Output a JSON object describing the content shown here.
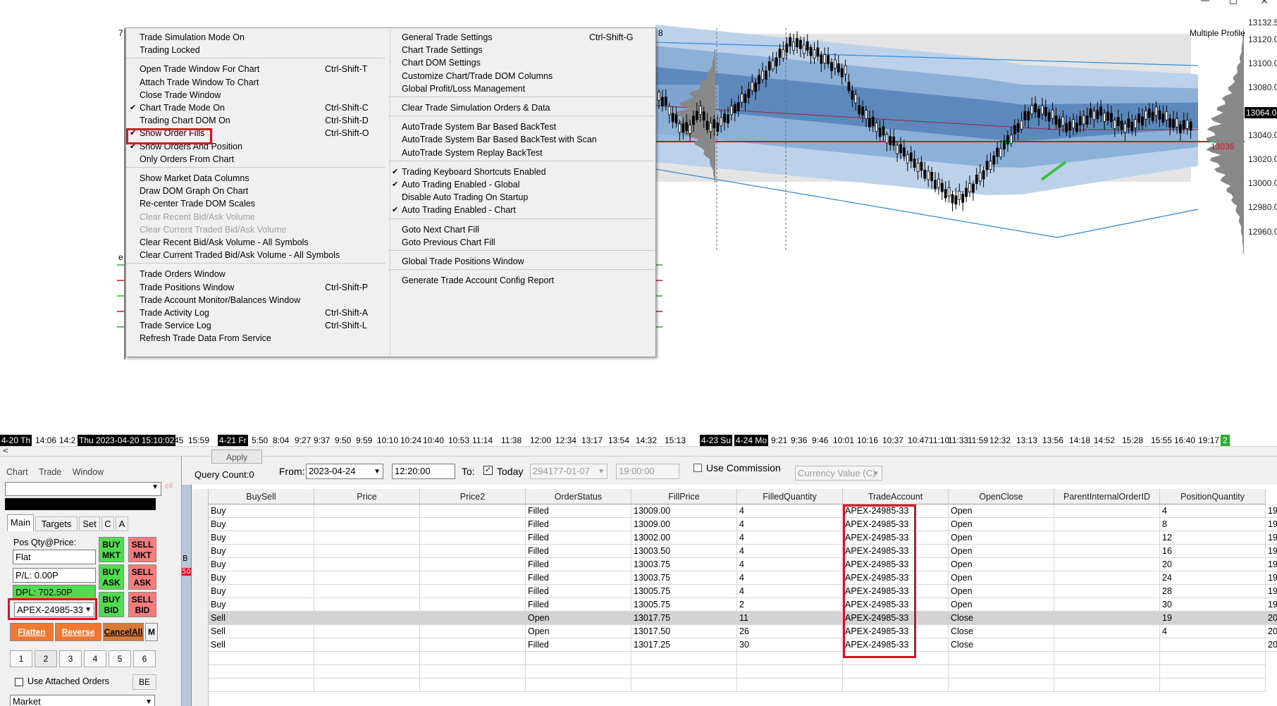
{
  "window": {
    "minimize": "—",
    "maximize": "☐",
    "close": "✕"
  },
  "chart": {
    "title_fragment": "Multiple Profile",
    "edge_label_a": "7",
    "edge_label_b": "8",
    "edge_label_c": "e",
    "price_labels": [
      "13132.50",
      "13120.00",
      "13100.00",
      "13080.00",
      "13064.00",
      "13040.00",
      "13020.00",
      "13000.00",
      "12980.00",
      "12960.00"
    ],
    "current_price": "13064.00",
    "red_line_label": "13036",
    "time_ticks": [
      {
        "t": "4-20 Th",
        "dark": true
      },
      {
        "t": "14:06"
      },
      {
        "t": "14:2"
      },
      {
        "t": "Thu 2023-04-20  15:10:02",
        "dark": true
      },
      {
        "t": "45"
      },
      {
        "t": "15:59"
      },
      {
        "t": "4-21 Fr",
        "dark": true
      },
      {
        "t": "5:50"
      },
      {
        "t": "8:04"
      },
      {
        "t": "9:27"
      },
      {
        "t": "9:37"
      },
      {
        "t": "9:50"
      },
      {
        "t": "9:59"
      },
      {
        "t": "10:10"
      },
      {
        "t": "10:24"
      },
      {
        "t": "10:40"
      },
      {
        "t": "10:53"
      },
      {
        "t": "11:14"
      },
      {
        "t": "11:38"
      },
      {
        "t": "12:00"
      },
      {
        "t": "12:34"
      },
      {
        "t": "13:17"
      },
      {
        "t": "13:54"
      },
      {
        "t": "14:32"
      },
      {
        "t": "15:13"
      },
      {
        "t": "4-23 Su",
        "dark": true
      },
      {
        "t": "4-24 Mo",
        "dark": true
      },
      {
        "t": "9:21"
      },
      {
        "t": "9:36"
      },
      {
        "t": "9:46"
      },
      {
        "t": "10:01"
      },
      {
        "t": "10:16"
      },
      {
        "t": "10:37"
      },
      {
        "t": "10:47"
      },
      {
        "t": "11:10"
      },
      {
        "t": "11:33"
      },
      {
        "t": "11:59"
      },
      {
        "t": "12:32"
      },
      {
        "t": "13:13"
      },
      {
        "t": "13:56"
      },
      {
        "t": "14:18"
      },
      {
        "t": "14:52"
      },
      {
        "t": "15:28"
      },
      {
        "t": "15:55"
      },
      {
        "t": "16:40"
      },
      {
        "t": "19:17"
      },
      {
        "t": "2",
        "green": true
      }
    ]
  },
  "menu": {
    "left": [
      {
        "label": "Trade Simulation Mode On"
      },
      {
        "label": "Trading Locked"
      },
      {
        "sep": true
      },
      {
        "label": "Open Trade Window For Chart",
        "shortcut": "Ctrl-Shift-T"
      },
      {
        "label": "Attach Trade Window To Chart"
      },
      {
        "label": "Close Trade Window"
      },
      {
        "label": "Chart Trade Mode On",
        "shortcut": "Ctrl-Shift-C",
        "checked": true
      },
      {
        "label": "Trading Chart DOM On",
        "shortcut": "Ctrl-Shift-D"
      },
      {
        "label": "Show Order Fills",
        "shortcut": "Ctrl-Shift-O",
        "checked": true,
        "highlight": true
      },
      {
        "label": "Show Orders And Position",
        "checked": true
      },
      {
        "label": "Only Orders From Chart"
      },
      {
        "sep": true
      },
      {
        "label": "Show Market Data Columns"
      },
      {
        "label": "Draw DOM Graph On Chart"
      },
      {
        "label": "Re-center Trade DOM Scales"
      },
      {
        "label": "Clear Recent Bid/Ask Volume",
        "disabled": true
      },
      {
        "label": "Clear Current Traded Bid/Ask Volume",
        "disabled": true
      },
      {
        "label": "Clear Recent Bid/Ask Volume - All Symbols"
      },
      {
        "label": "Clear Current Traded Bid/Ask Volume - All Symbols"
      },
      {
        "sep": true
      },
      {
        "label": "Trade Orders Window"
      },
      {
        "label": "Trade Positions Window",
        "shortcut": "Ctrl-Shift-P"
      },
      {
        "label": "Trade Account Monitor/Balances Window"
      },
      {
        "label": "Trade Activity Log",
        "shortcut": "Ctrl-Shift-A"
      },
      {
        "label": "Trade Service Log",
        "shortcut": "Ctrl-Shift-L"
      },
      {
        "label": "Refresh Trade Data From Service"
      }
    ],
    "right": [
      {
        "label": "General Trade Settings",
        "shortcut": "Ctrl-Shift-G"
      },
      {
        "label": "Chart Trade Settings"
      },
      {
        "label": "Chart DOM Settings"
      },
      {
        "label": "Customize Chart/Trade DOM Columns"
      },
      {
        "label": "Global Profit/Loss Management"
      },
      {
        "sep": true
      },
      {
        "label": "Clear Trade Simulation Orders & Data"
      },
      {
        "sep": true
      },
      {
        "label": "AutoTrade System Bar Based BackTest"
      },
      {
        "label": "AutoTrade System Bar Based BackTest with Scan"
      },
      {
        "label": "AutoTrade System Replay BackTest"
      },
      {
        "sep": true
      },
      {
        "label": "Trading Keyboard Shortcuts Enabled",
        "checked": true
      },
      {
        "label": "Auto Trading Enabled - Global",
        "checked": true
      },
      {
        "label": "Disable Auto Trading On Startup"
      },
      {
        "label": "Auto Trading Enabled - Chart",
        "checked": true
      },
      {
        "sep": true
      },
      {
        "label": "Goto Next Chart Fill"
      },
      {
        "label": "Goto Previous Chart Fill"
      },
      {
        "sep": true
      },
      {
        "label": "Global Trade Positions Window"
      },
      {
        "sep": true
      },
      {
        "label": "Generate Trade Account Config Report"
      }
    ]
  },
  "trade_panel": {
    "menu": [
      "Chart",
      "Trade",
      "Window"
    ],
    "tabs": [
      "Main",
      "Targets",
      "Set",
      "C",
      "A"
    ],
    "side_label": "ell",
    "pos_label": "Pos Qty@Price:",
    "pos_value": "Flat",
    "pl_value": "P/L: 0.00P",
    "dpl_value": "DPL: 702.50P",
    "account": "APEX-24985-33",
    "buy_mkt": [
      "BUY",
      "MKT"
    ],
    "sell_mkt": [
      "SELL",
      "MKT"
    ],
    "buy_ask": [
      "BUY",
      "ASK"
    ],
    "sell_ask": [
      "SELL",
      "ASK"
    ],
    "buy_bid": [
      "BUY",
      "BID"
    ],
    "sell_bid": [
      "SELL",
      "BID"
    ],
    "flatten": "Flatten",
    "reverse": "Reverse",
    "cancel_all": "CancelAll",
    "m_button": "M",
    "qty_buttons": [
      "1",
      "2",
      "3",
      "4",
      "5",
      "6"
    ],
    "use_attached": "Use Attached Orders",
    "be_button": "BE",
    "order_type": "Market",
    "strip_labels": [
      "0",
      "B",
      "50"
    ]
  },
  "query": {
    "apply": "Apply",
    "query_count": "Query Count:0",
    "from_label": "From:",
    "from_date": "2023-04-24",
    "from_time": "12:20:00",
    "to_label": "To:",
    "today_label": "Today",
    "to_date": "294177-01-07",
    "to_time": "19:00:00",
    "use_commission": "Use Commission",
    "currency": "Currency Value (C)"
  },
  "grid": {
    "columns": [
      "BuySell",
      "Price",
      "Price2",
      "OrderStatus",
      "FillPrice",
      "FilledQuantity",
      "TradeAccount",
      "OpenClose",
      "ParentInternalOrderID",
      "PositionQuantity"
    ],
    "rows": [
      {
        "BuySell": "Buy",
        "OrderStatus": "Filled",
        "FillPrice": "13009.00",
        "FilledQuantity": "4",
        "TradeAccount": "APEX-24985-33",
        "OpenClose": "Open",
        "PositionQuantity": "4",
        "extra": "19"
      },
      {
        "BuySell": "Buy",
        "OrderStatus": "Filled",
        "FillPrice": "13009.00",
        "FilledQuantity": "4",
        "TradeAccount": "APEX-24985-33",
        "OpenClose": "Open",
        "PositionQuantity": "8",
        "extra": "19"
      },
      {
        "BuySell": "Buy",
        "OrderStatus": "Filled",
        "FillPrice": "13002.00",
        "FilledQuantity": "4",
        "TradeAccount": "APEX-24985-33",
        "OpenClose": "Open",
        "PositionQuantity": "12",
        "extra": "19"
      },
      {
        "BuySell": "Buy",
        "OrderStatus": "Filled",
        "FillPrice": "13003.50",
        "FilledQuantity": "4",
        "TradeAccount": "APEX-24985-33",
        "OpenClose": "Open",
        "PositionQuantity": "16",
        "extra": "19"
      },
      {
        "BuySell": "Buy",
        "OrderStatus": "Filled",
        "FillPrice": "13003.75",
        "FilledQuantity": "4",
        "TradeAccount": "APEX-24985-33",
        "OpenClose": "Open",
        "PositionQuantity": "20",
        "extra": "19"
      },
      {
        "BuySell": "Buy",
        "OrderStatus": "Filled",
        "FillPrice": "13003.75",
        "FilledQuantity": "4",
        "TradeAccount": "APEX-24985-33",
        "OpenClose": "Open",
        "PositionQuantity": "24",
        "extra": "19"
      },
      {
        "BuySell": "Buy",
        "OrderStatus": "Filled",
        "FillPrice": "13005.75",
        "FilledQuantity": "4",
        "TradeAccount": "APEX-24985-33",
        "OpenClose": "Open",
        "PositionQuantity": "28",
        "extra": "19"
      },
      {
        "BuySell": "Buy",
        "OrderStatus": "Filled",
        "FillPrice": "13005.75",
        "FilledQuantity": "2",
        "TradeAccount": "APEX-24985-33",
        "OpenClose": "Open",
        "PositionQuantity": "30",
        "extra": "19"
      },
      {
        "BuySell": "Sell",
        "OrderStatus": "Open",
        "FillPrice": "13017.75",
        "FilledQuantity": "11",
        "TradeAccount": "APEX-24985-33",
        "OpenClose": "Close",
        "PositionQuantity": "19",
        "extra": "20",
        "selected": true
      },
      {
        "BuySell": "Sell",
        "OrderStatus": "Open",
        "FillPrice": "13017.50",
        "FilledQuantity": "26",
        "TradeAccount": "APEX-24985-33",
        "OpenClose": "Close",
        "PositionQuantity": "4",
        "extra": "20"
      },
      {
        "BuySell": "Sell",
        "OrderStatus": "Filled",
        "FillPrice": "13017.25",
        "FilledQuantity": "30",
        "TradeAccount": "APEX-24985-33",
        "OpenClose": "Close",
        "PositionQuantity": "",
        "extra": "20"
      }
    ]
  },
  "colors": {
    "highlight_red": "#e01020",
    "buy_green": "#4fdc4f",
    "sell_red": "#f47c7c",
    "orange": "#f07830",
    "band_dark": "#5d88bc",
    "band_mid": "#8db0d9",
    "band_light": "#bcd2ea"
  }
}
